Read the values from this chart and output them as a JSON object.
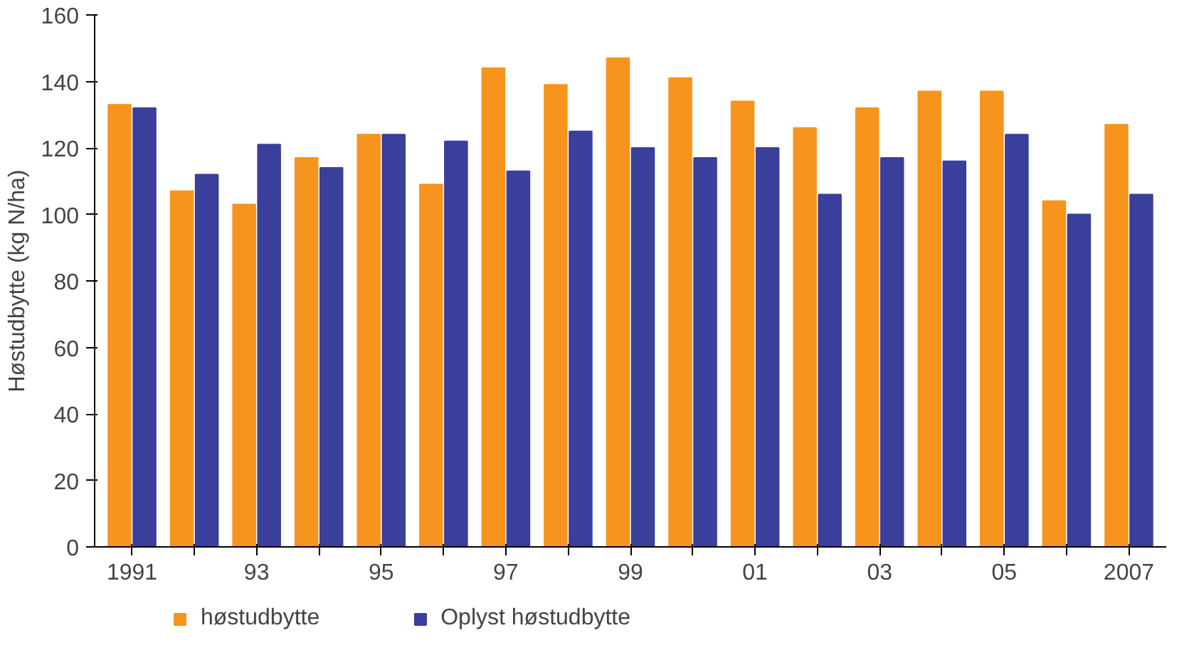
{
  "chart_data": {
    "type": "bar",
    "ylabel": "Høstudbytte (kg N/ha)",
    "categories": [
      "1991",
      null,
      "93",
      null,
      "95",
      null,
      "97",
      null,
      "99",
      null,
      "01",
      null,
      "03",
      null,
      "05",
      null,
      "2007"
    ],
    "series": [
      {
        "name": "høstudbytte",
        "color": "#f7941d",
        "values": [
          133,
          107,
          103,
          117,
          124,
          109,
          144,
          139,
          147,
          141,
          134,
          126,
          132,
          137,
          137,
          104,
          127
        ]
      },
      {
        "name": "Oplyst høstudbytte",
        "color": "#3a3f9b",
        "values": [
          132,
          112,
          121,
          114,
          124,
          122,
          113,
          125,
          120,
          117,
          120,
          106,
          117,
          116,
          124,
          100,
          106
        ]
      }
    ],
    "ylim": [
      0,
      160
    ],
    "yticks": [
      0,
      20,
      40,
      60,
      80,
      100,
      120,
      140,
      160
    ],
    "grid": false,
    "legend": "bottom"
  }
}
